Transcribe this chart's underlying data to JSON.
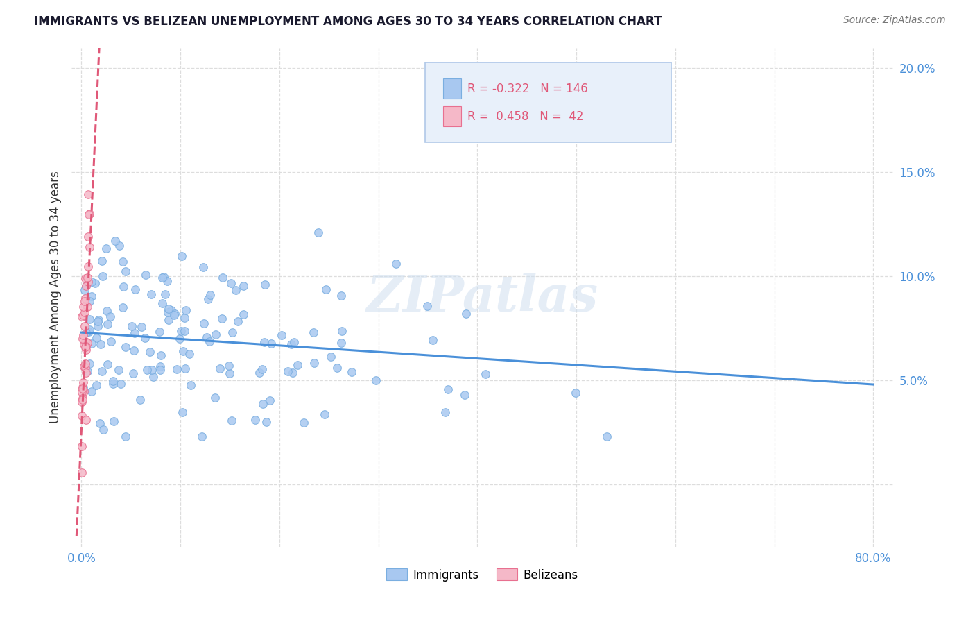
{
  "title": "IMMIGRANTS VS BELIZEAN UNEMPLOYMENT AMONG AGES 30 TO 34 YEARS CORRELATION CHART",
  "source": "Source: ZipAtlas.com",
  "ylabel": "Unemployment Among Ages 30 to 34 years",
  "watermark_text": "ZIPatlas",
  "legend_immigrants_label": "Immigrants",
  "legend_belizeans_label": "Belizeans",
  "immigrants_color": "#a8c8f0",
  "belizeans_color": "#f5b8c8",
  "immigrants_edge_color": "#7aaee0",
  "belizeans_edge_color": "#e87090",
  "immigrants_line_color": "#4a90d9",
  "belizeans_line_color": "#e05878",
  "tick_label_color": "#4a90d9",
  "axis_label_color": "#333333",
  "background_color": "#ffffff",
  "xlim_min": -0.01,
  "xlim_max": 0.82,
  "ylim_min": -0.03,
  "ylim_max": 0.21,
  "grid_color": "#dddddd",
  "legend_box_color": "#e8f0fa",
  "legend_box_edge": "#b0c8e8",
  "legend_r1_color": "#e05878",
  "legend_r2_color": "#e05878",
  "immigrants_trendline_x0": 0.0,
  "immigrants_trendline_y0": 0.073,
  "immigrants_trendline_x1": 0.8,
  "immigrants_trendline_y1": 0.048,
  "belizeans_trendline_x0": 0.0,
  "belizeans_trendline_y0": 0.035,
  "belizeans_trendline_x1": 0.012,
  "belizeans_trendline_y1": 0.175,
  "belizeans_trendline_ext_x0": -0.005,
  "belizeans_trendline_ext_y0": -0.025,
  "belizeans_trendline_ext_x1": 0.018,
  "belizeans_trendline_ext_y1": 0.21
}
